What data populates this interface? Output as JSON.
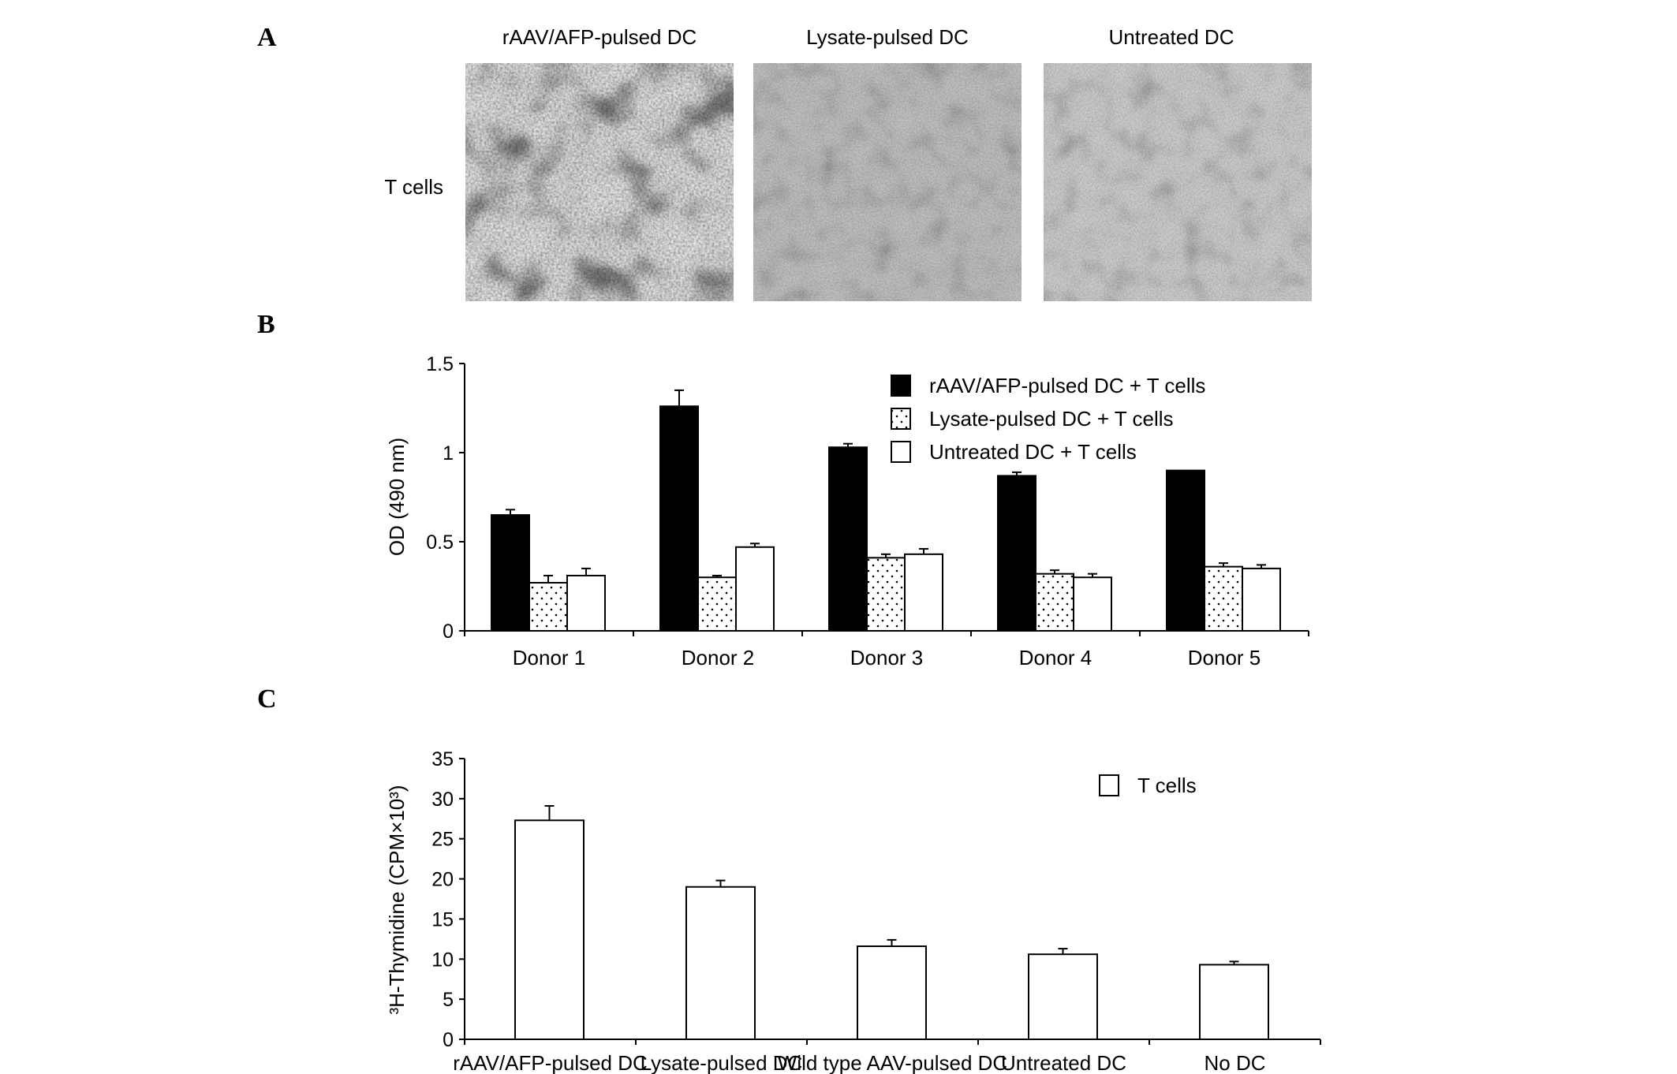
{
  "panel_a": {
    "letter": "A",
    "columns": [
      "rAAV/AFP-pulsed DC",
      "Lysate-pulsed DC",
      "Untreated DC"
    ],
    "row_label": "T cells"
  },
  "panel_b": {
    "letter": "B"
  },
  "panel_c": {
    "letter": "C"
  },
  "chart_data": [
    {
      "type": "bar",
      "categories": [
        "Donor 1",
        "Donor 2",
        "Donor 3",
        "Donor 4",
        "Donor 5"
      ],
      "series": [
        {
          "name": "rAAV/AFP-pulsed DC + T cells",
          "fill": "solid-black",
          "values": [
            0.65,
            1.26,
            1.03,
            0.87,
            0.9
          ],
          "error_upper": [
            0.68,
            1.35,
            1.05,
            0.89,
            0.9
          ]
        },
        {
          "name": "Lysate-pulsed DC + T cells",
          "fill": "dotted",
          "values": [
            0.27,
            0.3,
            0.41,
            0.32,
            0.36
          ],
          "error_upper": [
            0.31,
            0.31,
            0.43,
            0.34,
            0.38
          ]
        },
        {
          "name": "Untreated DC + T cells",
          "fill": "white",
          "values": [
            0.31,
            0.47,
            0.43,
            0.3,
            0.35
          ],
          "error_upper": [
            0.35,
            0.49,
            0.46,
            0.32,
            0.37
          ]
        }
      ],
      "ylabel": "OD (490 nm)",
      "ylim": [
        0,
        1.5
      ],
      "yticks": [
        "0",
        "0.5",
        "1",
        "1.5"
      ],
      "legend": "top-right",
      "grid": false
    },
    {
      "type": "bar",
      "categories": [
        "rAAV/AFP-pulsed DC",
        "Lysate-pulsed DC",
        "Wild type AAV-pulsed DC",
        "Untreated DC",
        "No DC"
      ],
      "series": [
        {
          "name": "T cells",
          "fill": "white",
          "values": [
            27.3,
            19.0,
            11.6,
            10.6,
            9.3
          ],
          "error_upper": [
            29.1,
            19.8,
            12.4,
            11.3,
            9.7
          ]
        }
      ],
      "ylabel": "³H-Thymidine (CPM×10³)",
      "ylim": [
        0,
        35
      ],
      "yticks": [
        "0",
        "5",
        "10",
        "15",
        "20",
        "25",
        "30",
        "35"
      ],
      "legend": "top-right",
      "grid": false
    }
  ]
}
